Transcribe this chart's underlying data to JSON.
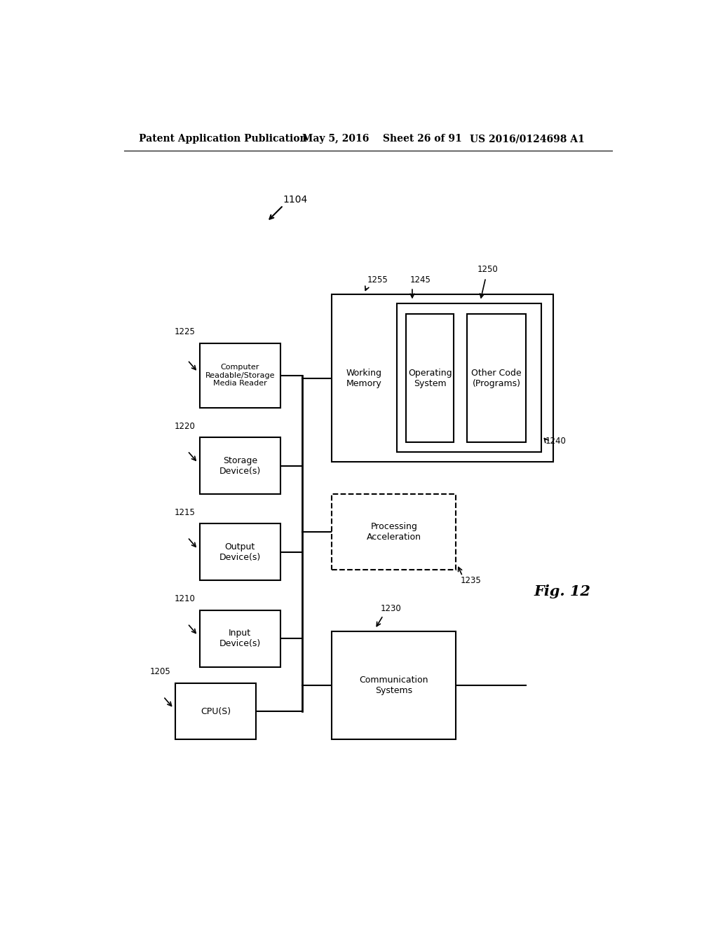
{
  "bg_color": "#ffffff",
  "header_text": "Patent Application Publication",
  "header_date": "May 5, 2016",
  "header_sheet": "Sheet 26 of 91",
  "header_patent": "US 2016/0124698 A1",
  "fig_label": "Fig. 12",
  "diagram_label": "1104"
}
